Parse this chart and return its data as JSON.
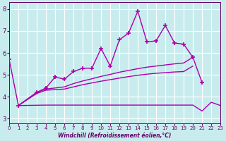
{
  "xlabel": "Windchill (Refroidissement éolien,°C)",
  "xlim": [
    0,
    23
  ],
  "ylim": [
    2.8,
    8.3
  ],
  "yticks": [
    3,
    4,
    5,
    6,
    7,
    8
  ],
  "xticks": [
    0,
    1,
    2,
    3,
    4,
    5,
    6,
    7,
    8,
    9,
    10,
    11,
    12,
    13,
    14,
    15,
    16,
    17,
    18,
    19,
    20,
    21,
    22,
    23
  ],
  "bg_color": "#c8ecee",
  "line_color": "#aa00aa",
  "grid_color": "#ffffff",
  "line1_x": [
    0,
    1,
    3,
    4,
    5,
    6,
    7,
    8,
    9,
    10,
    11,
    12,
    13,
    14,
    15,
    16,
    17,
    18,
    19,
    20,
    21
  ],
  "line1_y": [
    5.7,
    3.6,
    4.2,
    4.4,
    4.9,
    4.8,
    5.15,
    5.3,
    5.3,
    6.2,
    5.4,
    6.6,
    6.9,
    7.9,
    6.5,
    6.55,
    7.25,
    6.45,
    6.4,
    5.8,
    4.65
  ],
  "line2_x": [
    1,
    3,
    4,
    6,
    7,
    8,
    9,
    10,
    11,
    12,
    13,
    14,
    15,
    16,
    17,
    18,
    19,
    20
  ],
  "line2_y": [
    3.6,
    4.2,
    4.35,
    4.45,
    4.6,
    4.72,
    4.82,
    4.93,
    5.02,
    5.12,
    5.2,
    5.28,
    5.35,
    5.4,
    5.45,
    5.5,
    5.54,
    5.8
  ],
  "line3_x": [
    1,
    3,
    4,
    6,
    7,
    8,
    9,
    10,
    11,
    12,
    13,
    14,
    15,
    16,
    17,
    18,
    19,
    20
  ],
  "line3_y": [
    3.6,
    4.15,
    4.3,
    4.35,
    4.45,
    4.55,
    4.63,
    4.71,
    4.78,
    4.85,
    4.92,
    4.98,
    5.03,
    5.07,
    5.1,
    5.13,
    5.15,
    5.4
  ],
  "line4_x": [
    1,
    4,
    20,
    21,
    22,
    23
  ],
  "line4_y": [
    3.6,
    3.62,
    3.62,
    3.35,
    3.75,
    3.6
  ]
}
